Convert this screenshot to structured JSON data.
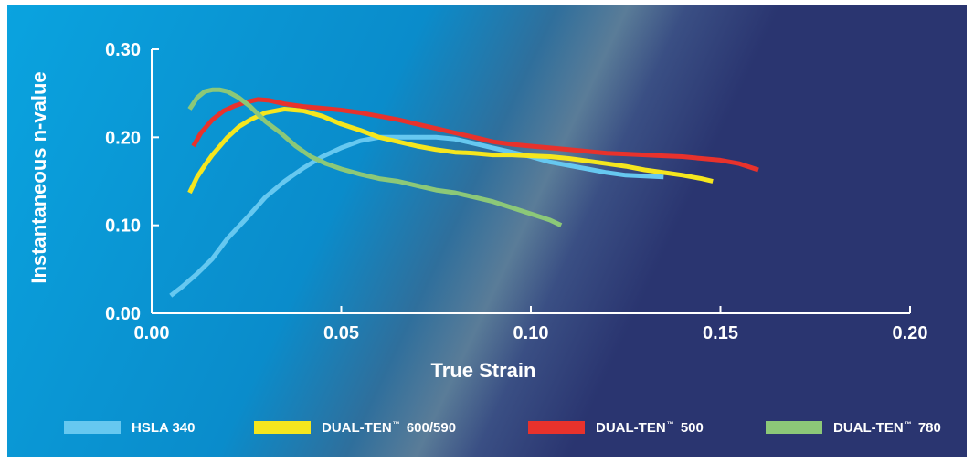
{
  "colors": {
    "background_light": "#0aa0dc",
    "background_dark": "#2a3570",
    "axis": "#ffffff"
  },
  "chart_data": {
    "type": "line",
    "xlabel": "True Strain",
    "ylabel": "Instantaneous n-value",
    "xlim": [
      0.0,
      0.2
    ],
    "ylim": [
      0.0,
      0.3
    ],
    "x_ticks": [
      "0.00",
      "0.05",
      "0.10",
      "0.15",
      "0.20"
    ],
    "y_ticks": [
      "0.00",
      "0.10",
      "0.20",
      "0.30"
    ],
    "x_tick_values": [
      0.0,
      0.05,
      0.1,
      0.15,
      0.2
    ],
    "y_tick_values": [
      0.0,
      0.1,
      0.2,
      0.3
    ],
    "grid": false,
    "legend_position": "bottom",
    "series": [
      {
        "name": "HSLA 340",
        "name_parts": [
          "HSLA 340"
        ],
        "color": "#66c8f0",
        "x": [
          0.005,
          0.008,
          0.012,
          0.016,
          0.02,
          0.025,
          0.03,
          0.035,
          0.04,
          0.045,
          0.05,
          0.055,
          0.06,
          0.065,
          0.07,
          0.075,
          0.08,
          0.085,
          0.09,
          0.095,
          0.1,
          0.105,
          0.11,
          0.115,
          0.12,
          0.125,
          0.13,
          0.135
        ],
        "y": [
          0.02,
          0.03,
          0.045,
          0.062,
          0.085,
          0.108,
          0.132,
          0.15,
          0.165,
          0.178,
          0.188,
          0.196,
          0.2,
          0.2,
          0.2,
          0.2,
          0.198,
          0.193,
          0.188,
          0.183,
          0.178,
          0.172,
          0.168,
          0.164,
          0.16,
          0.157,
          0.156,
          0.155
        ]
      },
      {
        "name": "DUAL-TEN™ 600/590",
        "name_parts": [
          "DUAL-TEN",
          "™",
          " 600/590"
        ],
        "color": "#f5e61e",
        "x": [
          0.01,
          0.012,
          0.014,
          0.016,
          0.018,
          0.02,
          0.023,
          0.026,
          0.03,
          0.035,
          0.04,
          0.045,
          0.05,
          0.055,
          0.06,
          0.065,
          0.07,
          0.075,
          0.08,
          0.085,
          0.09,
          0.095,
          0.1,
          0.105,
          0.11,
          0.115,
          0.12,
          0.125,
          0.13,
          0.135,
          0.14,
          0.145,
          0.148
        ],
        "y": [
          0.137,
          0.155,
          0.168,
          0.18,
          0.19,
          0.2,
          0.212,
          0.22,
          0.228,
          0.232,
          0.23,
          0.224,
          0.215,
          0.208,
          0.2,
          0.195,
          0.19,
          0.186,
          0.183,
          0.182,
          0.18,
          0.18,
          0.179,
          0.178,
          0.176,
          0.173,
          0.17,
          0.167,
          0.163,
          0.16,
          0.157,
          0.153,
          0.15
        ]
      },
      {
        "name": "DUAL-TEN™ 500",
        "name_parts": [
          "DUAL-TEN",
          "™",
          " 500"
        ],
        "color": "#e8322c",
        "x": [
          0.011,
          0.013,
          0.016,
          0.019,
          0.022,
          0.025,
          0.028,
          0.031,
          0.035,
          0.04,
          0.045,
          0.05,
          0.055,
          0.06,
          0.065,
          0.07,
          0.075,
          0.08,
          0.085,
          0.09,
          0.095,
          0.1,
          0.105,
          0.11,
          0.115,
          0.12,
          0.125,
          0.13,
          0.135,
          0.14,
          0.145,
          0.15,
          0.155,
          0.16
        ],
        "y": [
          0.19,
          0.205,
          0.22,
          0.23,
          0.236,
          0.24,
          0.243,
          0.242,
          0.238,
          0.235,
          0.233,
          0.231,
          0.228,
          0.224,
          0.22,
          0.215,
          0.21,
          0.205,
          0.2,
          0.195,
          0.192,
          0.19,
          0.188,
          0.186,
          0.184,
          0.182,
          0.181,
          0.18,
          0.179,
          0.178,
          0.176,
          0.174,
          0.17,
          0.163
        ]
      },
      {
        "name": "DUAL-TEN™ 780",
        "name_parts": [
          "DUAL-TEN",
          "™",
          " 780"
        ],
        "color": "#8cc878",
        "x": [
          0.01,
          0.012,
          0.014,
          0.016,
          0.018,
          0.02,
          0.023,
          0.026,
          0.03,
          0.034,
          0.038,
          0.042,
          0.046,
          0.05,
          0.055,
          0.06,
          0.065,
          0.07,
          0.075,
          0.08,
          0.085,
          0.09,
          0.095,
          0.1,
          0.105,
          0.108
        ],
        "y": [
          0.232,
          0.245,
          0.252,
          0.254,
          0.254,
          0.252,
          0.245,
          0.235,
          0.218,
          0.205,
          0.19,
          0.178,
          0.17,
          0.164,
          0.158,
          0.153,
          0.15,
          0.145,
          0.14,
          0.137,
          0.132,
          0.127,
          0.12,
          0.113,
          0.106,
          0.1
        ]
      }
    ]
  }
}
